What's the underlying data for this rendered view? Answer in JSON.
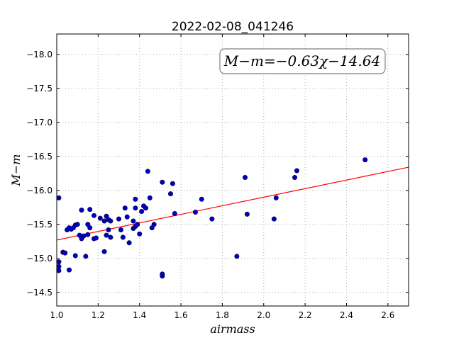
{
  "chart_data": {
    "type": "scatter",
    "title": "2022-02-08_041246",
    "xlabel": "airmass",
    "ylabel": "M−m",
    "xlim": [
      1.0,
      2.7
    ],
    "ylim": [
      -18.3,
      -14.3
    ],
    "y_inverted": true,
    "grid": true,
    "xticks": [
      "1.0",
      "1.2",
      "1.4",
      "1.6",
      "1.8",
      "2.0",
      "2.2",
      "2.4",
      "2.6"
    ],
    "yticks": [
      "−14.5",
      "−15.0",
      "−15.5",
      "−16.0",
      "−16.5",
      "−17.0",
      "−17.5",
      "−18.0"
    ],
    "annotation": "M−m=−0.63χ−14.64",
    "colors": {
      "points": "#0000bf",
      "fit_line": "#ff0000",
      "grid": "#b0b0b0"
    },
    "fit": {
      "slope": -0.63,
      "intercept": -14.64
    },
    "points": [
      [
        1.01,
        -14.82
      ],
      [
        1.01,
        -14.88
      ],
      [
        1.01,
        -14.95
      ],
      [
        1.01,
        -15.89
      ],
      [
        1.03,
        -15.09
      ],
      [
        1.04,
        -15.08
      ],
      [
        1.05,
        -15.42
      ],
      [
        1.06,
        -14.83
      ],
      [
        1.06,
        -15.45
      ],
      [
        1.07,
        -15.43
      ],
      [
        1.08,
        -15.45
      ],
      [
        1.09,
        -15.49
      ],
      [
        1.09,
        -15.04
      ],
      [
        1.1,
        -15.5
      ],
      [
        1.11,
        -15.34
      ],
      [
        1.12,
        -15.29
      ],
      [
        1.12,
        -15.71
      ],
      [
        1.13,
        -15.33
      ],
      [
        1.14,
        -15.03
      ],
      [
        1.15,
        -15.35
      ],
      [
        1.15,
        -15.5
      ],
      [
        1.16,
        -15.45
      ],
      [
        1.16,
        -15.72
      ],
      [
        1.18,
        -15.29
      ],
      [
        1.18,
        -15.63
      ],
      [
        1.19,
        -15.3
      ],
      [
        1.21,
        -15.59
      ],
      [
        1.23,
        -15.55
      ],
      [
        1.23,
        -15.1
      ],
      [
        1.24,
        -15.34
      ],
      [
        1.24,
        -15.62
      ],
      [
        1.25,
        -15.42
      ],
      [
        1.25,
        -15.57
      ],
      [
        1.26,
        -15.31
      ],
      [
        1.26,
        -15.55
      ],
      [
        1.3,
        -15.58
      ],
      [
        1.31,
        -15.42
      ],
      [
        1.32,
        -15.31
      ],
      [
        1.33,
        -15.74
      ],
      [
        1.34,
        -15.61
      ],
      [
        1.35,
        -15.23
      ],
      [
        1.37,
        -15.44
      ],
      [
        1.37,
        -15.55
      ],
      [
        1.38,
        -15.47
      ],
      [
        1.38,
        -15.87
      ],
      [
        1.38,
        -15.74
      ],
      [
        1.39,
        -15.5
      ],
      [
        1.4,
        -15.36
      ],
      [
        1.41,
        -15.69
      ],
      [
        1.42,
        -15.77
      ],
      [
        1.43,
        -15.74
      ],
      [
        1.44,
        -16.28
      ],
      [
        1.45,
        -15.89
      ],
      [
        1.46,
        -15.45
      ],
      [
        1.47,
        -15.5
      ],
      [
        1.51,
        -14.74
      ],
      [
        1.51,
        -14.77
      ],
      [
        1.51,
        -16.12
      ],
      [
        1.55,
        -15.95
      ],
      [
        1.56,
        -16.1
      ],
      [
        1.57,
        -15.66
      ],
      [
        1.67,
        -15.68
      ],
      [
        1.7,
        -15.87
      ],
      [
        1.75,
        -15.58
      ],
      [
        1.87,
        -15.03
      ],
      [
        1.91,
        -16.19
      ],
      [
        1.92,
        -15.65
      ],
      [
        2.05,
        -15.58
      ],
      [
        2.06,
        -15.89
      ],
      [
        2.15,
        -16.19
      ],
      [
        2.16,
        -16.29
      ],
      [
        2.49,
        -16.45
      ]
    ]
  }
}
